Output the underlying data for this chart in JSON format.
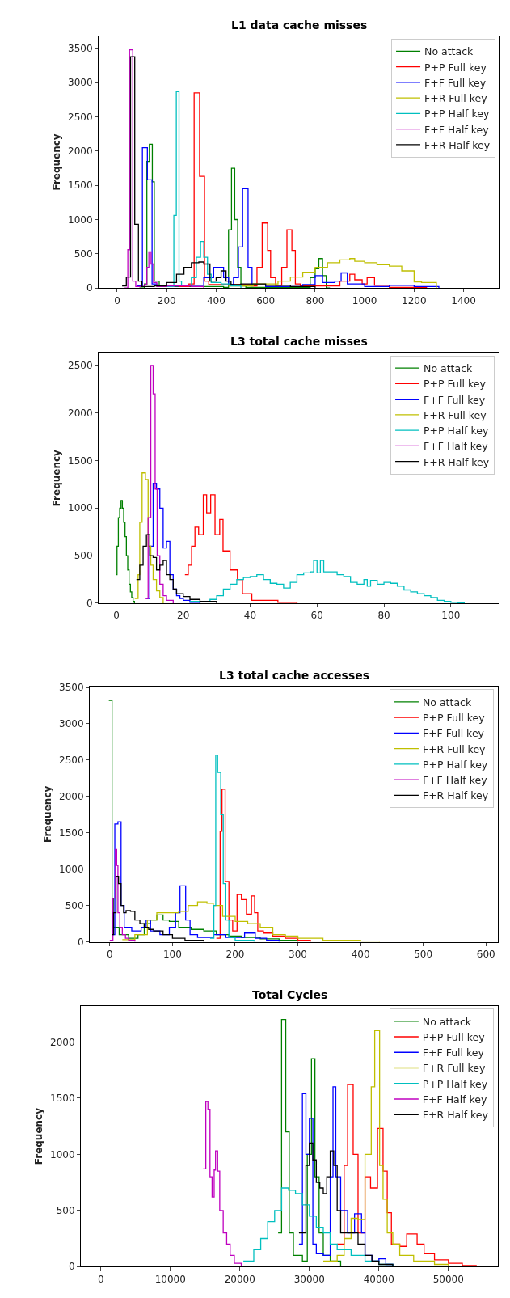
{
  "chart_data": [
    {
      "type": "step",
      "title": "L1 data cache misses",
      "ylabel": "Frequency",
      "xlim": [
        -75,
        1545
      ],
      "xticks": [
        0,
        200,
        400,
        600,
        800,
        1000,
        1200,
        1400
      ],
      "ylim": [
        0,
        3680
      ],
      "yticks": [
        0,
        500,
        1000,
        1500,
        2000,
        2500,
        3000,
        3500
      ],
      "grid": false,
      "legend": "top right",
      "series": [
        {
          "name": "No attack",
          "color": "#008000",
          "x": [
            90,
            110,
            120,
            130,
            142,
            150,
            170,
            430,
            450,
            462,
            475,
            487,
            500,
            520,
            780,
            800,
            815,
            830,
            845,
            860
          ],
          "values": [
            0,
            60,
            1850,
            2100,
            1550,
            100,
            20,
            10,
            850,
            1750,
            1000,
            300,
            30,
            10,
            150,
            280,
            430,
            180,
            0,
            0
          ]
        },
        {
          "name": "P+P Full key",
          "color": "#ff0000",
          "x": [
            250,
            290,
            311,
            333,
            353,
            370,
            540,
            565,
            586,
            608,
            620,
            640,
            665,
            686,
            706,
            720,
            740,
            900,
            940,
            960,
            990,
            1010,
            1040,
            1100,
            1250
          ],
          "values": [
            20,
            60,
            2850,
            1630,
            100,
            50,
            30,
            300,
            950,
            550,
            150,
            40,
            300,
            850,
            550,
            60,
            30,
            100,
            200,
            120,
            60,
            150,
            40,
            10,
            0
          ]
        },
        {
          "name": "F+F Full key",
          "color": "#0000ff",
          "x": [
            80,
            102,
            122,
            141,
            160,
            250,
            350,
            390,
            430,
            450,
            470,
            490,
            507,
            529,
            545,
            600,
            750,
            800,
            830,
            880,
            905,
            930,
            1000,
            1100,
            1200,
            1300
          ],
          "values": [
            30,
            2050,
            1580,
            60,
            30,
            40,
            150,
            300,
            150,
            50,
            150,
            600,
            1450,
            300,
            50,
            20,
            50,
            180,
            80,
            100,
            220,
            60,
            20,
            40,
            20,
            0
          ]
        },
        {
          "name": "F+R Full key",
          "color": "#bfbf00",
          "x": [
            450,
            550,
            650,
            700,
            750,
            800,
            850,
            900,
            940,
            960,
            1000,
            1050,
            1100,
            1150,
            1200,
            1230,
            1290
          ],
          "values": [
            30,
            60,
            100,
            160,
            230,
            300,
            370,
            410,
            430,
            390,
            370,
            340,
            320,
            250,
            90,
            80,
            0
          ]
        },
        {
          "name": "P+P Half key",
          "color": "#00bfbf",
          "x": [
            200,
            229,
            239,
            250,
            260,
            300,
            320,
            337,
            350,
            365,
            380,
            420,
            460,
            500
          ],
          "values": [
            20,
            1060,
            2870,
            100,
            40,
            150,
            450,
            680,
            450,
            200,
            80,
            60,
            30,
            0
          ]
        },
        {
          "name": "F+F Half key",
          "color": "#bf00bf",
          "x": [
            30,
            43,
            50,
            63,
            75,
            110,
            120,
            128,
            137,
            147,
            160,
            200,
            300,
            350
          ],
          "values": [
            0,
            560,
            3480,
            100,
            20,
            50,
            300,
            530,
            350,
            80,
            20,
            30,
            20,
            0
          ]
        },
        {
          "name": "F+R Half key",
          "color": "#000000",
          "x": [
            20,
            37,
            54,
            71,
            86,
            100,
            150,
            200,
            240,
            270,
            300,
            330,
            350,
            375,
            400,
            420,
            440,
            460,
            500,
            600,
            700,
            800
          ],
          "values": [
            30,
            160,
            3380,
            930,
            100,
            20,
            30,
            80,
            200,
            300,
            370,
            380,
            350,
            100,
            150,
            250,
            100,
            50,
            60,
            40,
            20,
            0
          ]
        }
      ]
    },
    {
      "type": "step",
      "title": "L3 total cache misses",
      "ylabel": "Frequency",
      "xlim": [
        -5.3,
        114.3
      ],
      "xticks": [
        0,
        20,
        40,
        60,
        80,
        100
      ],
      "ylim": [
        0,
        2630
      ],
      "yticks": [
        0,
        500,
        1000,
        1500,
        2000,
        2500
      ],
      "grid": false,
      "legend": "top right",
      "series": [
        {
          "name": "No attack",
          "color": "#008000",
          "x": [
            -0.2,
            0.2,
            0.6,
            1.0,
            1.4,
            1.8,
            2.2,
            2.6,
            3.0,
            3.4,
            3.8,
            4.2,
            4.6,
            5.0,
            5.4
          ],
          "values": [
            300,
            600,
            900,
            1000,
            1080,
            1000,
            850,
            700,
            500,
            350,
            200,
            120,
            60,
            20,
            0
          ]
        },
        {
          "name": "P+P Full key",
          "color": "#ff0000",
          "x": [
            20.5,
            21.5,
            22.5,
            23.5,
            24.6,
            26,
            27,
            28.2,
            29.5,
            30.9,
            31.9,
            34,
            36.2,
            37.7,
            40.5,
            48.3,
            54
          ],
          "values": [
            300,
            400,
            600,
            800,
            720,
            1140,
            950,
            1140,
            720,
            880,
            550,
            350,
            250,
            100,
            30,
            10,
            0
          ]
        },
        {
          "name": "F+F Full key",
          "color": "#0000ff",
          "x": [
            9,
            10,
            11,
            12,
            13,
            14,
            15,
            16,
            17,
            18,
            19,
            20,
            22,
            25
          ],
          "values": [
            50,
            600,
            1260,
            1200,
            1000,
            580,
            650,
            300,
            150,
            80,
            50,
            30,
            10,
            0
          ]
        },
        {
          "name": "F+R Full key",
          "color": "#bfbf00",
          "x": [
            5.5,
            6.5,
            7,
            7.7,
            8.7,
            9.5,
            10.3,
            11,
            12,
            13,
            14
          ],
          "values": [
            50,
            300,
            850,
            1370,
            1300,
            600,
            400,
            250,
            130,
            60,
            0
          ]
        },
        {
          "name": "P+P Half key",
          "color": "#00bfbf",
          "x": [
            22,
            28,
            30,
            32,
            34,
            36,
            38,
            40,
            42,
            44,
            46,
            48,
            50,
            52,
            54,
            56,
            58,
            59,
            60,
            61,
            62,
            64,
            66,
            68,
            70,
            72,
            74,
            75,
            76,
            78,
            80,
            82,
            84,
            86,
            88,
            90,
            92,
            94,
            96,
            98,
            100,
            102,
            104
          ],
          "values": [
            20,
            40,
            80,
            150,
            200,
            250,
            270,
            280,
            300,
            250,
            210,
            200,
            160,
            220,
            300,
            320,
            330,
            450,
            320,
            450,
            330,
            330,
            300,
            280,
            220,
            200,
            250,
            180,
            240,
            200,
            220,
            210,
            180,
            140,
            120,
            100,
            80,
            60,
            30,
            20,
            10,
            5,
            0
          ]
        },
        {
          "name": "F+F Half key",
          "color": "#bf00bf",
          "x": [
            8.5,
            9.5,
            10.3,
            11,
            11.6,
            12.2,
            13,
            14,
            15,
            17
          ],
          "values": [
            50,
            900,
            2500,
            2200,
            1200,
            500,
            200,
            80,
            30,
            0
          ]
        },
        {
          "name": "F+R Half key",
          "color": "#000000",
          "x": [
            6,
            7,
            8,
            9,
            10,
            11,
            12,
            13,
            14,
            15,
            16,
            17,
            18,
            20,
            22,
            25,
            30
          ],
          "values": [
            250,
            400,
            600,
            720,
            500,
            480,
            350,
            400,
            450,
            300,
            250,
            150,
            100,
            70,
            40,
            20,
            0
          ]
        }
      ]
    },
    {
      "type": "step",
      "title": "L3 total cache accesses",
      "ylabel": "Frequency",
      "xlim": [
        -32,
        619
      ],
      "xticks": [
        0,
        100,
        200,
        300,
        400,
        500,
        600
      ],
      "ylim": [
        0,
        3510
      ],
      "yticks": [
        0,
        500,
        1000,
        1500,
        2000,
        2500,
        3000,
        3500
      ],
      "grid": false,
      "legend": "top right",
      "series": [
        {
          "name": "No attack",
          "color": "#008000",
          "x": [
            -1.5,
            3.6,
            6,
            15,
            30,
            45,
            55,
            65,
            75,
            85,
            95,
            110,
            130,
            150,
            170,
            190,
            210,
            240,
            270,
            300
          ],
          "values": [
            3320,
            600,
            200,
            100,
            50,
            100,
            250,
            300,
            370,
            300,
            280,
            200,
            170,
            150,
            100,
            80,
            60,
            40,
            20,
            0
          ]
        },
        {
          "name": "P+P Full key",
          "color": "#ff0000",
          "x": [
            170,
            176,
            179,
            184,
            190,
            196,
            203,
            210,
            218,
            226,
            231,
            236,
            245,
            260,
            280,
            300,
            320
          ],
          "values": [
            50,
            1520,
            2100,
            830,
            300,
            150,
            650,
            580,
            380,
            630,
            400,
            150,
            120,
            80,
            50,
            20,
            0
          ]
        },
        {
          "name": "F+F Full key",
          "color": "#0000ff",
          "x": [
            5,
            8,
            13,
            18,
            23,
            35,
            50,
            58,
            65,
            80,
            95,
            105,
            112,
            121,
            128,
            140,
            165,
            185,
            215,
            232,
            250,
            270
          ],
          "values": [
            100,
            1620,
            1650,
            500,
            200,
            150,
            200,
            300,
            150,
            100,
            200,
            400,
            770,
            300,
            100,
            60,
            100,
            60,
            120,
            50,
            20,
            0
          ]
        },
        {
          "name": "F+R Full key",
          "color": "#bfbf00",
          "x": [
            20,
            40,
            60,
            75,
            90,
            110,
            125,
            140,
            155,
            165,
            180,
            200,
            220,
            240,
            260,
            280,
            300,
            340,
            400,
            430
          ],
          "values": [
            30,
            100,
            300,
            400,
            400,
            420,
            500,
            550,
            530,
            500,
            350,
            280,
            250,
            200,
            100,
            80,
            50,
            20,
            10,
            0
          ]
        },
        {
          "name": "P+P Half key",
          "color": "#00bfbf",
          "x": [
            160,
            166,
            169,
            172,
            177,
            181,
            185,
            190,
            200,
            230
          ],
          "values": [
            50,
            500,
            2570,
            2330,
            1750,
            800,
            300,
            60,
            20,
            0
          ]
        },
        {
          "name": "F+F Half key",
          "color": "#bf00bf",
          "x": [
            0,
            5,
            9,
            11,
            13,
            16,
            20,
            25,
            30,
            40
          ],
          "values": [
            20,
            600,
            1270,
            1050,
            400,
            200,
            100,
            50,
            20,
            0
          ]
        },
        {
          "name": "F+R Half key",
          "color": "#000000",
          "x": [
            3,
            6,
            10,
            14,
            18,
            22,
            26,
            33,
            40,
            48,
            55,
            62,
            70,
            85,
            100,
            120,
            150
          ],
          "values": [
            100,
            400,
            900,
            800,
            500,
            400,
            430,
            420,
            300,
            250,
            200,
            170,
            150,
            100,
            50,
            20,
            0
          ]
        }
      ]
    },
    {
      "type": "step",
      "title": "Total Cycles",
      "ylabel": "Frequency",
      "xlim": [
        -2884,
        57120
      ],
      "xticks": [
        0,
        10000,
        20000,
        30000,
        40000,
        50000
      ],
      "ylim": [
        0,
        2320
      ],
      "yticks": [
        0,
        500,
        1000,
        1500,
        2000
      ],
      "grid": false,
      "legend": "top right",
      "series": [
        {
          "name": "No attack",
          "color": "#008000",
          "x": [
            25500,
            26000,
            26600,
            27100,
            27700,
            29000,
            29700,
            30300,
            30800,
            31400,
            32000,
            33000,
            34500
          ],
          "values": [
            300,
            2200,
            1200,
            300,
            100,
            50,
            1000,
            1850,
            800,
            300,
            100,
            50,
            0
          ]
        },
        {
          "name": "P+P Full key",
          "color": "#ff0000",
          "x": [
            34000,
            35000,
            35500,
            36300,
            37000,
            38000,
            38800,
            39800,
            40600,
            41200,
            41800,
            43000,
            44000,
            45500,
            46500,
            48000,
            50000,
            52000,
            54000
          ],
          "values": [
            200,
            900,
            1620,
            1000,
            300,
            800,
            700,
            1230,
            850,
            480,
            200,
            180,
            290,
            200,
            120,
            60,
            30,
            10,
            0
          ]
        },
        {
          "name": "F+F Full key",
          "color": "#0000ff",
          "x": [
            28500,
            29000,
            29500,
            30000,
            30500,
            31000,
            32000,
            33000,
            33400,
            33800,
            34500,
            35500,
            36500,
            37500,
            38000,
            39000,
            40000,
            41000,
            42000
          ],
          "values": [
            200,
            1540,
            1000,
            1320,
            200,
            120,
            100,
            800,
            1600,
            800,
            500,
            300,
            470,
            300,
            100,
            50,
            70,
            20,
            0
          ]
        },
        {
          "name": "F+R Full key",
          "color": "#bfbf00",
          "x": [
            32000,
            34000,
            35000,
            36000,
            37000,
            38000,
            38900,
            39400,
            40100,
            40600,
            41200,
            42000,
            43000,
            45000,
            48000,
            50000
          ],
          "values": [
            50,
            100,
            250,
            430,
            420,
            1000,
            1600,
            2100,
            900,
            600,
            300,
            200,
            100,
            50,
            20,
            0
          ]
        },
        {
          "name": "P+P Half key",
          "color": "#00bfbf",
          "x": [
            20500,
            22000,
            23000,
            24000,
            25000,
            26000,
            27000,
            28000,
            29000,
            30000,
            31000,
            32000,
            33000,
            34000,
            36000,
            38000,
            40000,
            42000
          ],
          "values": [
            50,
            150,
            250,
            400,
            500,
            700,
            680,
            650,
            550,
            450,
            350,
            300,
            200,
            150,
            100,
            50,
            20,
            0
          ]
        },
        {
          "name": "F+F Half key",
          "color": "#bf00bf",
          "x": [
            14700,
            15100,
            15400,
            15700,
            16000,
            16300,
            16500,
            16800,
            17100,
            17600,
            18100,
            18600,
            19200,
            20200
          ],
          "values": [
            870,
            1470,
            1400,
            800,
            620,
            860,
            1030,
            850,
            500,
            300,
            200,
            100,
            30,
            0
          ]
        },
        {
          "name": "F+R Half key",
          "color": "#000000",
          "x": [
            28500,
            29500,
            30000,
            30500,
            31000,
            31500,
            32000,
            32500,
            33000,
            33500,
            34000,
            34500,
            36000,
            37000,
            38000,
            39000,
            40000,
            42000
          ],
          "values": [
            300,
            900,
            1100,
            950,
            750,
            700,
            650,
            800,
            1030,
            900,
            500,
            300,
            300,
            200,
            100,
            50,
            20,
            0
          ]
        }
      ]
    }
  ]
}
